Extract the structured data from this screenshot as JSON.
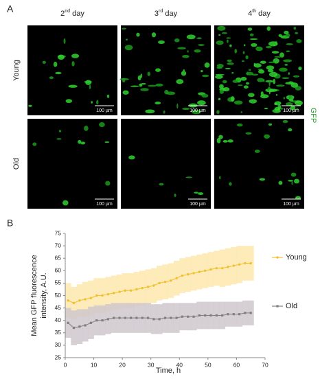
{
  "panel_a": {
    "letter": "A",
    "columns": [
      {
        "number": "2",
        "sup": "nd",
        "text": " day"
      },
      {
        "number": "3",
        "sup": "rd",
        "text": " day"
      },
      {
        "number": "4",
        "sup": "th",
        "text": " day"
      }
    ],
    "rows": [
      "Young",
      "Old"
    ],
    "scale_bar": "100 µm",
    "channel": "GFP"
  },
  "chart_data": {
    "type": "line",
    "letter": "B",
    "ylabel": [
      "Mean GFP fluorescence",
      "intensity, A.U."
    ],
    "xlabel": "Time, h",
    "xlim": [
      0,
      70
    ],
    "xticks": [
      0,
      10,
      20,
      30,
      40,
      50,
      60,
      70
    ],
    "ylim": [
      25,
      75
    ],
    "yticks": [
      25,
      30,
      35,
      40,
      45,
      50,
      55,
      60,
      65,
      70,
      75
    ],
    "x": [
      1,
      3,
      5,
      7,
      9,
      11,
      13,
      15,
      17,
      19,
      21,
      23,
      25,
      27,
      29,
      31,
      33,
      35,
      37,
      39,
      41,
      43,
      45,
      47,
      49,
      51,
      53,
      55,
      57,
      59,
      61,
      63,
      65
    ],
    "series": [
      {
        "name": "Young",
        "color": "#f2bf2f",
        "band_color": "#fde7ad",
        "marker": "circle",
        "values": [
          48,
          47,
          48,
          48.5,
          49,
          50,
          50,
          50.5,
          51,
          51.5,
          52,
          52,
          52.5,
          53,
          53.5,
          54,
          55,
          55.5,
          56,
          57,
          58,
          58.5,
          59,
          59.5,
          60,
          60.5,
          61,
          61,
          61.5,
          62,
          62.5,
          63,
          63
        ],
        "errors": [
          7,
          6.5,
          6.5,
          7,
          7,
          7,
          7,
          7,
          7,
          7,
          7,
          7,
          7,
          7,
          7,
          7,
          7,
          7,
          7,
          7,
          7,
          7,
          7,
          7,
          7,
          7,
          7,
          7.5,
          7.5,
          7.5,
          7.5,
          7,
          7
        ]
      },
      {
        "name": "Old",
        "color": "#7f7f7f",
        "band_color": "#cfc7cc",
        "marker": "square",
        "values": [
          39,
          37,
          37.5,
          38,
          39,
          40,
          40,
          40.5,
          41,
          41,
          41,
          41,
          41,
          41,
          41,
          40.5,
          40.5,
          41,
          41,
          41,
          41.5,
          41.5,
          41.5,
          42,
          42,
          42,
          42,
          42,
          42.5,
          42.5,
          42.5,
          43,
          43
        ],
        "errors": [
          6,
          7,
          7,
          6.5,
          6.5,
          6,
          6,
          6,
          6,
          6,
          6,
          6,
          6,
          6,
          6,
          6,
          6,
          6,
          6,
          6,
          5.5,
          5.5,
          5.5,
          5.5,
          5.5,
          5.5,
          5.5,
          5.5,
          5,
          5,
          5,
          5,
          5
        ]
      }
    ]
  }
}
